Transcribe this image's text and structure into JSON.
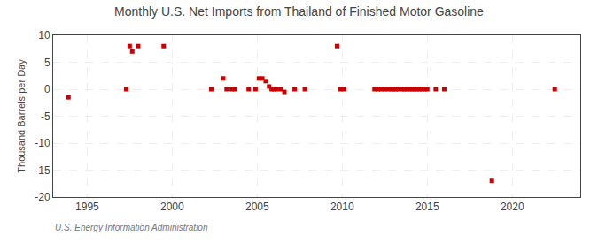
{
  "chart_data": {
    "type": "scatter",
    "title": "Monthly U.S. Net Imports from Thailand of Finished Motor Gasoline",
    "ylabel": "Thousand Barrels per Day",
    "annotations": [
      "U.S. Energy Information Administration"
    ],
    "color": "#cc0000",
    "marker": "square",
    "grid": true,
    "xlim": [
      1993.0,
      2024.0
    ],
    "ylim": [
      -20,
      10
    ],
    "xticks": [
      1995,
      2000,
      2005,
      2010,
      2015,
      2020
    ],
    "yticks": [
      10,
      5,
      0,
      -5,
      -10,
      -15,
      -20
    ],
    "x": [
      1993.9,
      1997.3,
      1997.5,
      1997.65,
      1998.0,
      1999.5,
      2002.3,
      2003.0,
      2003.2,
      2003.5,
      2003.7,
      2004.5,
      2004.9,
      2005.1,
      2005.3,
      2005.5,
      2005.7,
      2005.85,
      2006.0,
      2006.15,
      2006.4,
      2006.6,
      2007.2,
      2007.8,
      2009.7,
      2009.9,
      2010.1,
      2011.9,
      2012.1,
      2012.3,
      2012.5,
      2012.7,
      2012.9,
      2013.0,
      2013.15,
      2013.3,
      2013.5,
      2013.65,
      2013.8,
      2013.95,
      2014.1,
      2014.25,
      2014.4,
      2014.55,
      2014.7,
      2014.85,
      2015.0,
      2015.5,
      2016.0,
      2018.8,
      2022.5
    ],
    "values": [
      -1.5,
      0.0,
      8.0,
      7.0,
      8.0,
      8.0,
      0.0,
      2.0,
      0.0,
      0.0,
      0.0,
      0.0,
      0.0,
      2.0,
      2.0,
      1.5,
      0.5,
      0.0,
      0.0,
      0.0,
      0.0,
      -0.5,
      0.0,
      0.0,
      8.0,
      0.0,
      0.0,
      0.0,
      0.0,
      0.0,
      0.0,
      0.0,
      0.0,
      0.0,
      0.0,
      0.0,
      0.0,
      0.0,
      0.0,
      0.0,
      0.0,
      0.0,
      0.0,
      0.0,
      0.0,
      0.0,
      0.0,
      0.0,
      0.0,
      -17.0,
      0.0
    ]
  }
}
